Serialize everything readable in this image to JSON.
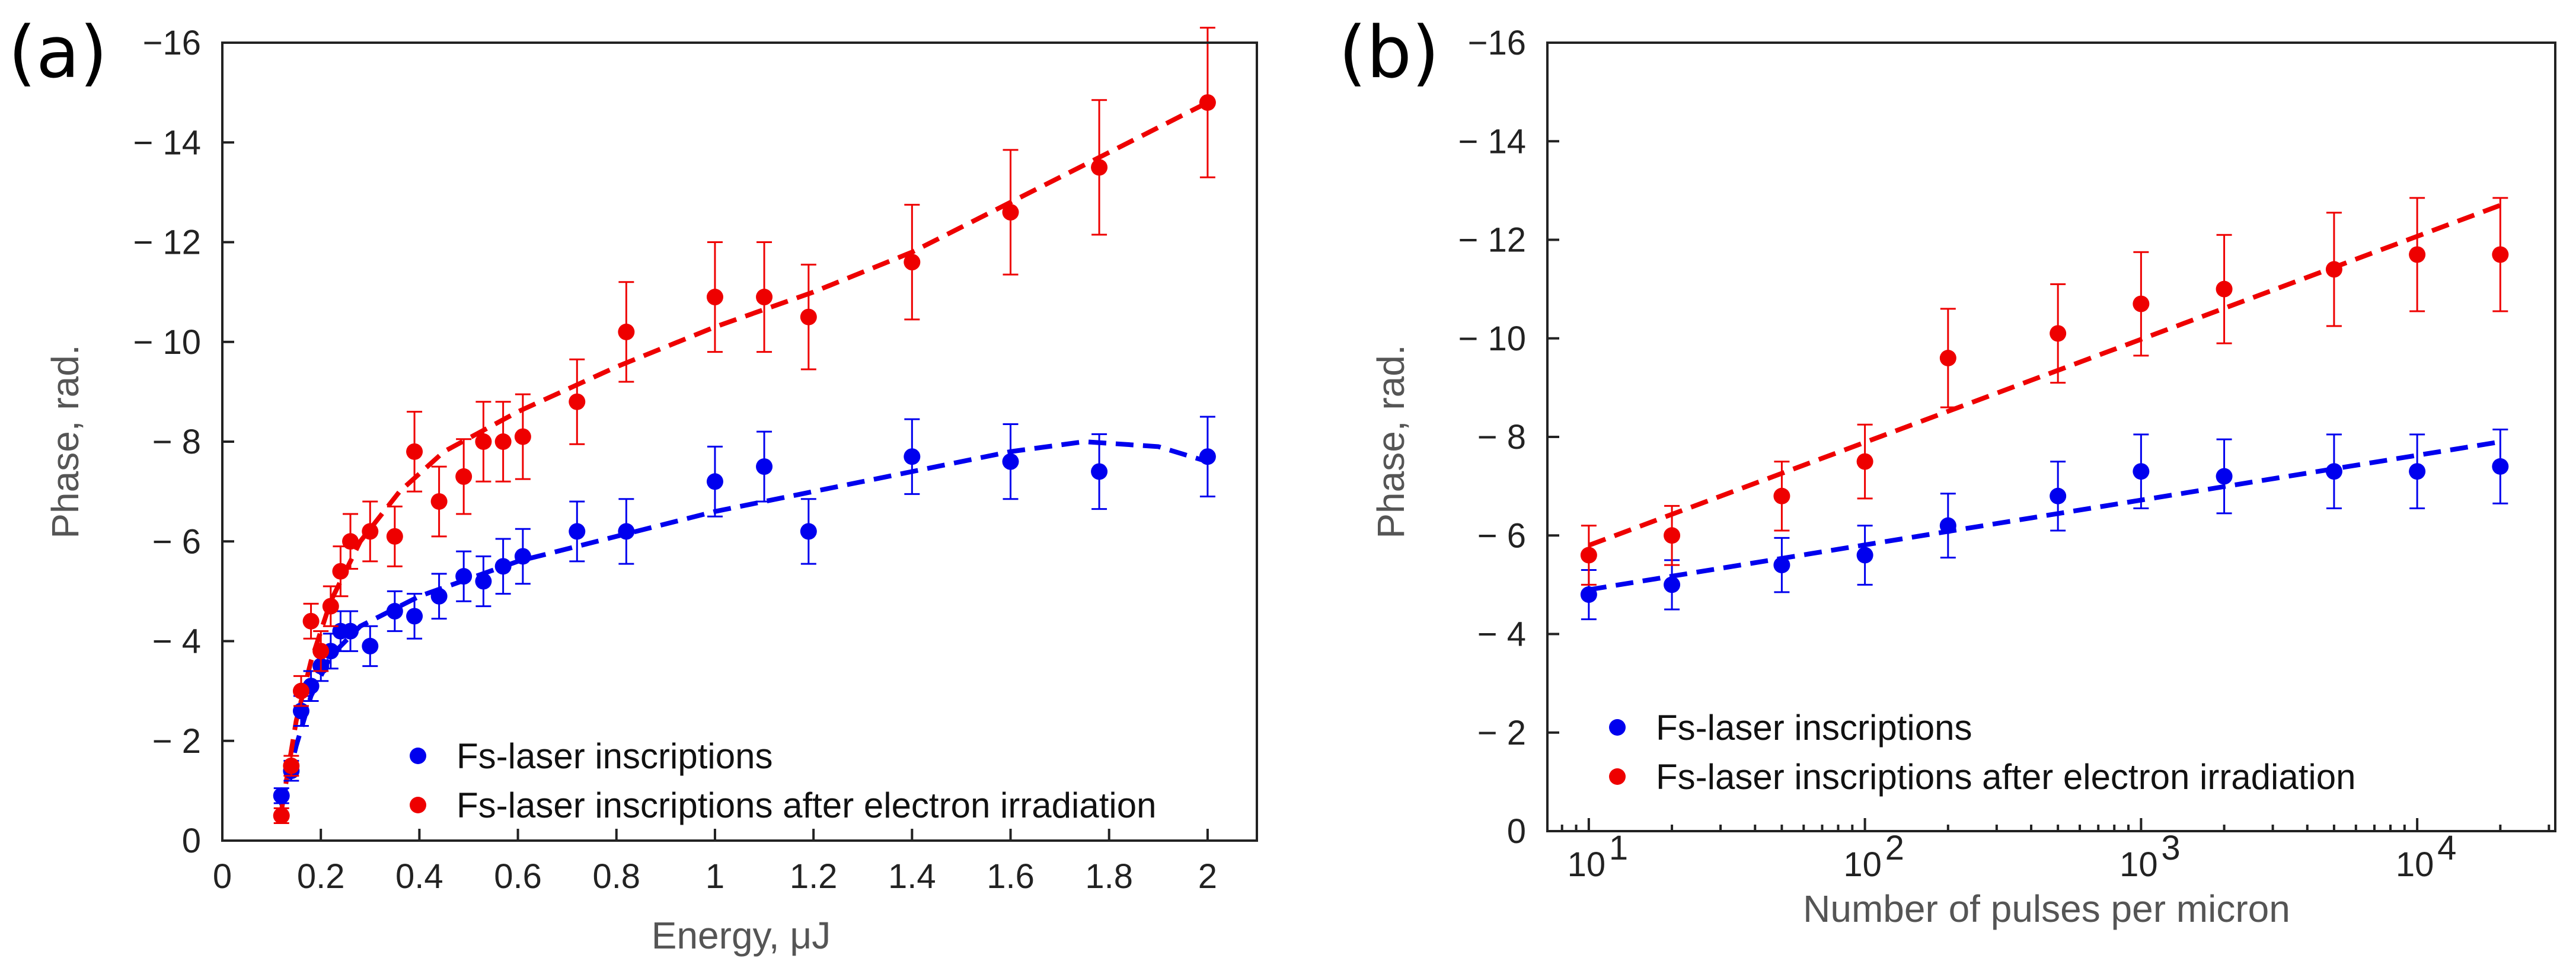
{
  "chart_data": [
    {
      "panel_label": "(a)",
      "type": "scatter",
      "xlabel": "Energy, μJ",
      "ylabel": "Phase, rad.",
      "xlim": [
        0,
        2.1
      ],
      "ylim": [
        0,
        -16
      ],
      "x_ticks": [
        0,
        0.2,
        0.4,
        0.6,
        0.8,
        1,
        1.2,
        1.4,
        1.6,
        1.8,
        2
      ],
      "x_tick_labels": [
        "0",
        "0.2",
        "0.4",
        "0.6",
        "0.8",
        "1",
        "1.2",
        "1.4",
        "1.6",
        "1.8",
        "2"
      ],
      "y_ticks": [
        0,
        -2,
        -4,
        -6,
        -8,
        -10,
        -12,
        -14,
        -16
      ],
      "y_tick_labels": [
        "0",
        "− 2",
        "− 4",
        "− 6",
        "− 8",
        "− 10",
        "− 12",
        "− 14",
        "−16"
      ],
      "legend_position": "bottom-right",
      "series": [
        {
          "name": "Fs-laser inscriptions",
          "color": "#0000ee",
          "points": [
            {
              "x": 0.12,
              "y": -0.9,
              "err": 0.15
            },
            {
              "x": 0.14,
              "y": -1.4,
              "err": 0.2
            },
            {
              "x": 0.16,
              "y": -2.6,
              "err": 0.3
            },
            {
              "x": 0.18,
              "y": -3.1,
              "err": 0.3
            },
            {
              "x": 0.2,
              "y": -3.5,
              "err": 0.3
            },
            {
              "x": 0.22,
              "y": -3.8,
              "err": 0.35
            },
            {
              "x": 0.24,
              "y": -4.2,
              "err": 0.4
            },
            {
              "x": 0.26,
              "y": -4.2,
              "err": 0.4
            },
            {
              "x": 0.3,
              "y": -3.9,
              "err": 0.4
            },
            {
              "x": 0.35,
              "y": -4.6,
              "err": 0.4
            },
            {
              "x": 0.39,
              "y": -4.5,
              "err": 0.45
            },
            {
              "x": 0.44,
              "y": -4.9,
              "err": 0.45
            },
            {
              "x": 0.49,
              "y": -5.3,
              "err": 0.5
            },
            {
              "x": 0.53,
              "y": -5.2,
              "err": 0.5
            },
            {
              "x": 0.57,
              "y": -5.5,
              "err": 0.55
            },
            {
              "x": 0.61,
              "y": -5.7,
              "err": 0.55
            },
            {
              "x": 0.72,
              "y": -6.2,
              "err": 0.6
            },
            {
              "x": 0.82,
              "y": -6.2,
              "err": 0.65
            },
            {
              "x": 1.0,
              "y": -7.2,
              "err": 0.7
            },
            {
              "x": 1.1,
              "y": -7.5,
              "err": 0.7
            },
            {
              "x": 1.19,
              "y": -6.2,
              "err": 0.65
            },
            {
              "x": 1.4,
              "y": -7.7,
              "err": 0.75
            },
            {
              "x": 1.6,
              "y": -7.6,
              "err": 0.75
            },
            {
              "x": 1.78,
              "y": -7.4,
              "err": 0.75
            },
            {
              "x": 2.0,
              "y": -7.7,
              "err": 0.8
            }
          ],
          "fit": [
            {
              "x": 0.12,
              "y": -0.7
            },
            {
              "x": 0.15,
              "y": -1.9
            },
            {
              "x": 0.18,
              "y": -2.9
            },
            {
              "x": 0.22,
              "y": -3.7
            },
            {
              "x": 0.28,
              "y": -4.3
            },
            {
              "x": 0.4,
              "y": -4.9
            },
            {
              "x": 0.6,
              "y": -5.6
            },
            {
              "x": 0.8,
              "y": -6.1
            },
            {
              "x": 1.0,
              "y": -6.6
            },
            {
              "x": 1.2,
              "y": -7.0
            },
            {
              "x": 1.4,
              "y": -7.4
            },
            {
              "x": 1.6,
              "y": -7.8
            },
            {
              "x": 1.75,
              "y": -8.0
            },
            {
              "x": 1.9,
              "y": -7.9
            },
            {
              "x": 2.0,
              "y": -7.6
            }
          ]
        },
        {
          "name": "Fs-laser inscriptions after electron irradiation",
          "color": "#ee0000",
          "points": [
            {
              "x": 0.12,
              "y": -0.5,
              "err": 0.15
            },
            {
              "x": 0.14,
              "y": -1.5,
              "err": 0.2
            },
            {
              "x": 0.16,
              "y": -3.0,
              "err": 0.3
            },
            {
              "x": 0.18,
              "y": -4.4,
              "err": 0.35
            },
            {
              "x": 0.2,
              "y": -3.8,
              "err": 0.4
            },
            {
              "x": 0.22,
              "y": -4.7,
              "err": 0.4
            },
            {
              "x": 0.24,
              "y": -5.4,
              "err": 0.5
            },
            {
              "x": 0.26,
              "y": -6.0,
              "err": 0.55
            },
            {
              "x": 0.3,
              "y": -6.2,
              "err": 0.6
            },
            {
              "x": 0.35,
              "y": -6.1,
              "err": 0.6
            },
            {
              "x": 0.39,
              "y": -7.8,
              "err": 0.8
            },
            {
              "x": 0.44,
              "y": -6.8,
              "err": 0.7
            },
            {
              "x": 0.49,
              "y": -7.3,
              "err": 0.75
            },
            {
              "x": 0.53,
              "y": -8.0,
              "err": 0.8
            },
            {
              "x": 0.57,
              "y": -8.0,
              "err": 0.8
            },
            {
              "x": 0.61,
              "y": -8.1,
              "err": 0.85
            },
            {
              "x": 0.72,
              "y": -8.8,
              "err": 0.85
            },
            {
              "x": 0.82,
              "y": -10.2,
              "err": 1.0
            },
            {
              "x": 1.0,
              "y": -10.9,
              "err": 1.1
            },
            {
              "x": 1.1,
              "y": -10.9,
              "err": 1.1
            },
            {
              "x": 1.19,
              "y": -10.5,
              "err": 1.05
            },
            {
              "x": 1.4,
              "y": -11.6,
              "err": 1.15
            },
            {
              "x": 1.6,
              "y": -12.6,
              "err": 1.25
            },
            {
              "x": 1.78,
              "y": -13.5,
              "err": 1.35
            },
            {
              "x": 2.0,
              "y": -14.8,
              "err": 1.5
            }
          ],
          "fit": [
            {
              "x": 0.12,
              "y": -0.6
            },
            {
              "x": 0.15,
              "y": -2.4
            },
            {
              "x": 0.18,
              "y": -3.6
            },
            {
              "x": 0.22,
              "y": -4.8
            },
            {
              "x": 0.28,
              "y": -6.0
            },
            {
              "x": 0.36,
              "y": -7.0
            },
            {
              "x": 0.45,
              "y": -7.8
            },
            {
              "x": 0.6,
              "y": -8.6
            },
            {
              "x": 0.8,
              "y": -9.5
            },
            {
              "x": 1.0,
              "y": -10.3
            },
            {
              "x": 1.2,
              "y": -11.0
            },
            {
              "x": 1.4,
              "y": -11.8
            },
            {
              "x": 1.6,
              "y": -12.8
            },
            {
              "x": 1.8,
              "y": -13.8
            },
            {
              "x": 2.0,
              "y": -14.8
            }
          ]
        }
      ]
    },
    {
      "panel_label": "(b)",
      "type": "scatter",
      "xscale": "log",
      "xlabel": "Number of pulses per micron",
      "ylabel": "Phase, rad.",
      "xlim_log10": [
        0.85,
        4.5
      ],
      "ylim": [
        0,
        -16
      ],
      "x_ticks_log10": [
        1,
        2,
        3,
        4
      ],
      "x_tick_bases": [
        "10",
        "10",
        "10",
        "10"
      ],
      "x_tick_exponents": [
        "1",
        "2",
        "3",
        "4"
      ],
      "y_ticks": [
        0,
        -2,
        -4,
        -6,
        -8,
        -10,
        -12,
        -14,
        -16
      ],
      "y_tick_labels": [
        "0",
        "− 2",
        "− 4",
        "− 6",
        "− 8",
        "− 10",
        "− 12",
        "− 14",
        "−16"
      ],
      "legend_position": "bottom-left",
      "series": [
        {
          "name": "Fs-laser inscriptions",
          "color": "#0000ee",
          "points": [
            {
              "x": 10,
              "y": -4.8,
              "err": 0.5
            },
            {
              "x": 20,
              "y": -5.0,
              "err": 0.5
            },
            {
              "x": 50,
              "y": -5.4,
              "err": 0.55
            },
            {
              "x": 100,
              "y": -5.6,
              "err": 0.6
            },
            {
              "x": 200,
              "y": -6.2,
              "err": 0.65
            },
            {
              "x": 500,
              "y": -6.8,
              "err": 0.7
            },
            {
              "x": 1000,
              "y": -7.3,
              "err": 0.75
            },
            {
              "x": 2000,
              "y": -7.2,
              "err": 0.75
            },
            {
              "x": 5000,
              "y": -7.3,
              "err": 0.75
            },
            {
              "x": 10000,
              "y": -7.3,
              "err": 0.75
            },
            {
              "x": 20000,
              "y": -7.4,
              "err": 0.75
            }
          ],
          "fit": [
            {
              "x": 10,
              "y": -4.9
            },
            {
              "x": 20000,
              "y": -7.9
            }
          ]
        },
        {
          "name": "Fs-laser inscriptions after electron irradiation",
          "color": "#ee0000",
          "points": [
            {
              "x": 10,
              "y": -5.6,
              "err": 0.6
            },
            {
              "x": 20,
              "y": -6.0,
              "err": 0.6
            },
            {
              "x": 50,
              "y": -6.8,
              "err": 0.7
            },
            {
              "x": 100,
              "y": -7.5,
              "err": 0.75
            },
            {
              "x": 200,
              "y": -9.6,
              "err": 1.0
            },
            {
              "x": 500,
              "y": -10.1,
              "err": 1.0
            },
            {
              "x": 1000,
              "y": -10.7,
              "err": 1.05
            },
            {
              "x": 2000,
              "y": -11.0,
              "err": 1.1
            },
            {
              "x": 5000,
              "y": -11.4,
              "err": 1.15
            },
            {
              "x": 10000,
              "y": -11.7,
              "err": 1.15
            },
            {
              "x": 20000,
              "y": -11.7,
              "err": 1.15
            }
          ],
          "fit": [
            {
              "x": 10,
              "y": -5.8
            },
            {
              "x": 20000,
              "y": -12.7
            }
          ]
        }
      ]
    }
  ]
}
